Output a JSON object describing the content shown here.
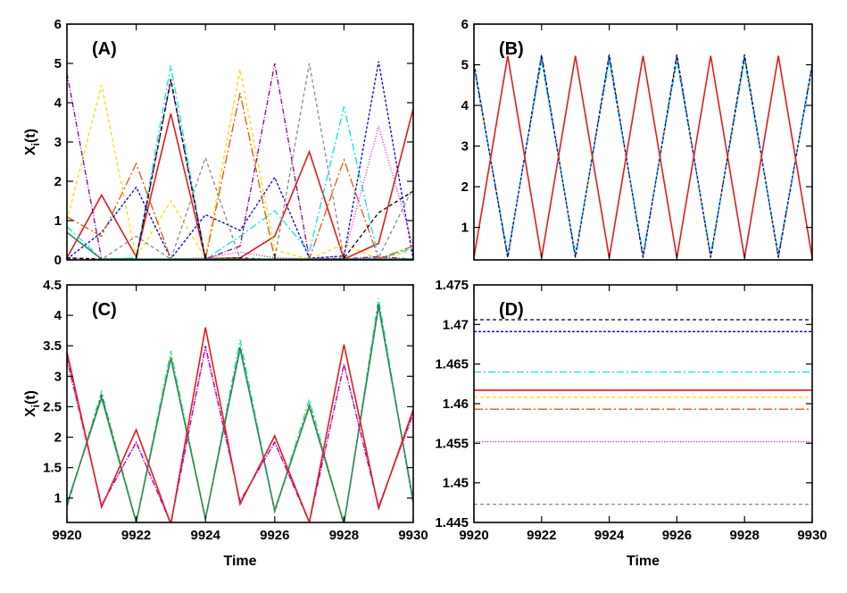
{
  "colors": {
    "red": "#e41a1c",
    "yellow": "#ffd700",
    "cyan": "#00e5ee",
    "blue": "#0000cd",
    "purple": "#8b008b",
    "gray": "#888888",
    "orange": "#e0580b",
    "magenta": "#ee00ee",
    "black": "#000000",
    "green": "#2e8b57"
  },
  "chart_data": [
    {
      "type": "line",
      "panel_label": "(A)",
      "xlabel": "",
      "ylabel": "X",
      "ylabel_sub": "i",
      "ylabel_suffix": "(t)",
      "xlim": [
        9920,
        9930
      ],
      "ylim": [
        0,
        6
      ],
      "yticks": [
        "0",
        "1",
        "2",
        "3",
        "4",
        "5",
        "6"
      ],
      "xticks": [],
      "x": [
        9920,
        9921,
        9922,
        9923,
        9924,
        9925,
        9926,
        9927,
        9928,
        9929,
        9930
      ],
      "series": [
        {
          "color": "red",
          "dash": "solid",
          "values": [
            0.05,
            1.65,
            0.08,
            3.72,
            0.03,
            0.05,
            0.6,
            2.75,
            0.02,
            0.42,
            3.85
          ]
        },
        {
          "color": "yellow",
          "dash": "4,3",
          "values": [
            1.0,
            4.45,
            0.05,
            1.5,
            0.05,
            4.85,
            0.25,
            0.02,
            0.4,
            0.02,
            0.25
          ]
        },
        {
          "color": "cyan",
          "dash": "8,3,2,3",
          "values": [
            0.85,
            0.02,
            0.05,
            4.95,
            0.02,
            0.6,
            1.25,
            0.2,
            3.9,
            0.02,
            0.3
          ]
        },
        {
          "color": "blue",
          "dash": "3,2",
          "values": [
            0.02,
            0.7,
            1.85,
            0.03,
            1.15,
            0.75,
            2.1,
            0.04,
            0.1,
            5.05,
            0.02
          ]
        },
        {
          "color": "purple",
          "dash": "6,2,1,2",
          "values": [
            4.75,
            0.02,
            0.03,
            4.55,
            0.02,
            0.35,
            5.0,
            0.02,
            0.03,
            0.08,
            0.02
          ]
        },
        {
          "color": "gray",
          "dash": "4,3",
          "values": [
            0.02,
            0.01,
            0.6,
            0.02,
            2.6,
            0.02,
            0.02,
            5.0,
            0.02,
            0.05,
            1.85
          ]
        },
        {
          "color": "orange",
          "dash": "10,3,2,3",
          "values": [
            1.1,
            0.6,
            2.45,
            0.03,
            0.02,
            4.25,
            0.02,
            0.03,
            2.55,
            0.03,
            0.35
          ]
        },
        {
          "color": "magenta",
          "dash": "1,2",
          "values": [
            0.05,
            0.03,
            0.01,
            0.02,
            0.05,
            0.2,
            0.05,
            0.03,
            0.1,
            3.4,
            0.35
          ]
        },
        {
          "color": "black",
          "dash": "4,3",
          "values": [
            0.05,
            0.02,
            0.03,
            4.6,
            0.02,
            0.05,
            0.01,
            0.02,
            0.04,
            1.2,
            1.75
          ]
        },
        {
          "color": "green",
          "dash": "solid",
          "values": [
            0.7,
            0.02,
            0.02,
            0.02,
            0.02,
            0.02,
            0.02,
            0.02,
            0.02,
            0.02,
            0.02
          ]
        }
      ]
    },
    {
      "type": "line",
      "panel_label": "(B)",
      "xlabel": "",
      "ylabel": "",
      "xlim": [
        9920,
        9930
      ],
      "ylim": [
        0.2,
        6
      ],
      "yticks": [
        "1",
        "2",
        "3",
        "4",
        "5",
        "6"
      ],
      "xticks": [],
      "x": [
        9920,
        9921,
        9922,
        9923,
        9924,
        9925,
        9926,
        9927,
        9928,
        9929,
        9930
      ],
      "series": [
        {
          "color": "black",
          "dash": "4,3",
          "values": [
            5.05,
            0.25,
            5.25,
            0.25,
            5.25,
            0.25,
            5.25,
            0.25,
            5.25,
            0.25,
            5.0
          ]
        },
        {
          "color": "yellow",
          "dash": "4,3",
          "values": [
            5.0,
            0.3,
            5.15,
            0.3,
            5.15,
            0.3,
            5.15,
            0.3,
            5.15,
            0.3,
            4.95
          ]
        },
        {
          "color": "cyan",
          "dash": "8,3,2,3",
          "values": [
            4.95,
            0.35,
            5.1,
            0.35,
            5.1,
            0.35,
            5.1,
            0.35,
            5.1,
            0.35,
            4.9
          ]
        },
        {
          "color": "blue",
          "dash": "3,2",
          "values": [
            5.0,
            0.28,
            5.2,
            0.28,
            5.2,
            0.28,
            5.2,
            0.28,
            5.2,
            0.28,
            5.0
          ]
        },
        {
          "color": "red",
          "dash": "solid",
          "values": [
            0.25,
            5.22,
            0.25,
            5.22,
            0.25,
            5.22,
            0.25,
            5.22,
            0.25,
            5.22,
            0.25
          ]
        }
      ]
    },
    {
      "type": "line",
      "panel_label": "(C)",
      "xlabel": "Time",
      "ylabel": "X",
      "ylabel_sub": "i",
      "ylabel_suffix": "(t)",
      "xlim": [
        9920,
        9930
      ],
      "ylim": [
        0.6,
        4.5
      ],
      "yticks": [
        "1",
        "1.5",
        "2",
        "2.5",
        "3",
        "3.5",
        "4",
        "4.5"
      ],
      "xticks": [
        "9920",
        "9922",
        "9924",
        "9926",
        "9928",
        "9930"
      ],
      "x": [
        9920,
        9921,
        9922,
        9923,
        9924,
        9925,
        9926,
        9927,
        9928,
        9929,
        9930
      ],
      "series": [
        {
          "color": "cyan",
          "dash": "8,3,2,3",
          "values": [
            0.85,
            2.75,
            0.6,
            3.42,
            0.65,
            3.6,
            0.78,
            2.62,
            0.55,
            4.28,
            0.9
          ]
        },
        {
          "color": "yellow",
          "dash": "4,3",
          "values": [
            0.9,
            2.7,
            0.62,
            3.35,
            0.68,
            3.5,
            0.8,
            2.55,
            0.6,
            4.2,
            0.95
          ]
        },
        {
          "color": "black",
          "dash": "4,3",
          "values": [
            0.88,
            2.68,
            0.6,
            3.3,
            0.66,
            3.48,
            0.78,
            2.52,
            0.58,
            4.18,
            0.92
          ]
        },
        {
          "color": "green",
          "dash": "solid",
          "values": [
            0.9,
            2.65,
            0.6,
            3.3,
            0.66,
            3.45,
            0.8,
            2.5,
            0.58,
            4.15,
            0.95
          ]
        },
        {
          "color": "purple",
          "dash": "6,2,1,2",
          "values": [
            3.3,
            0.88,
            1.92,
            0.58,
            3.5,
            0.95,
            1.92,
            0.6,
            3.2,
            0.85,
            2.4
          ]
        },
        {
          "color": "magenta",
          "dash": "1,2",
          "values": [
            3.25,
            0.9,
            1.9,
            0.6,
            3.45,
            0.95,
            1.9,
            0.62,
            3.18,
            0.88,
            2.35
          ]
        },
        {
          "color": "red",
          "dash": "solid",
          "values": [
            3.4,
            0.85,
            2.12,
            0.57,
            3.8,
            0.9,
            2.02,
            0.6,
            3.52,
            0.83,
            2.45
          ]
        }
      ]
    },
    {
      "type": "line",
      "panel_label": "(D)",
      "xlabel": "Time",
      "ylabel": "",
      "xlim": [
        9920,
        9930
      ],
      "ylim": [
        1.445,
        1.475
      ],
      "yticks": [
        "1.445",
        "1.45",
        "1.455",
        "1.46",
        "1.465",
        "1.47",
        "1.475"
      ],
      "xticks": [
        "9920",
        "9922",
        "9924",
        "9926",
        "9928",
        "9930"
      ],
      "x": [
        9920,
        9930
      ],
      "series": [
        {
          "color": "black",
          "dash": "4,3",
          "values": [
            1.4706,
            1.4706
          ]
        },
        {
          "color": "blue",
          "dash": "3,2",
          "values": [
            1.4691,
            1.4691
          ]
        },
        {
          "color": "cyan",
          "dash": "8,3,2,3",
          "values": [
            1.464,
            1.464
          ]
        },
        {
          "color": "red",
          "dash": "solid",
          "values": [
            1.4617,
            1.4617
          ]
        },
        {
          "color": "yellow",
          "dash": "4,3",
          "values": [
            1.4608,
            1.4608
          ]
        },
        {
          "color": "orange",
          "dash": "10,3,2,3",
          "values": [
            1.4593,
            1.4593
          ]
        },
        {
          "color": "magenta",
          "dash": "1,2",
          "values": [
            1.4552,
            1.4552
          ]
        },
        {
          "color": "gray",
          "dash": "4,3",
          "values": [
            1.4473,
            1.4473
          ]
        }
      ]
    }
  ]
}
